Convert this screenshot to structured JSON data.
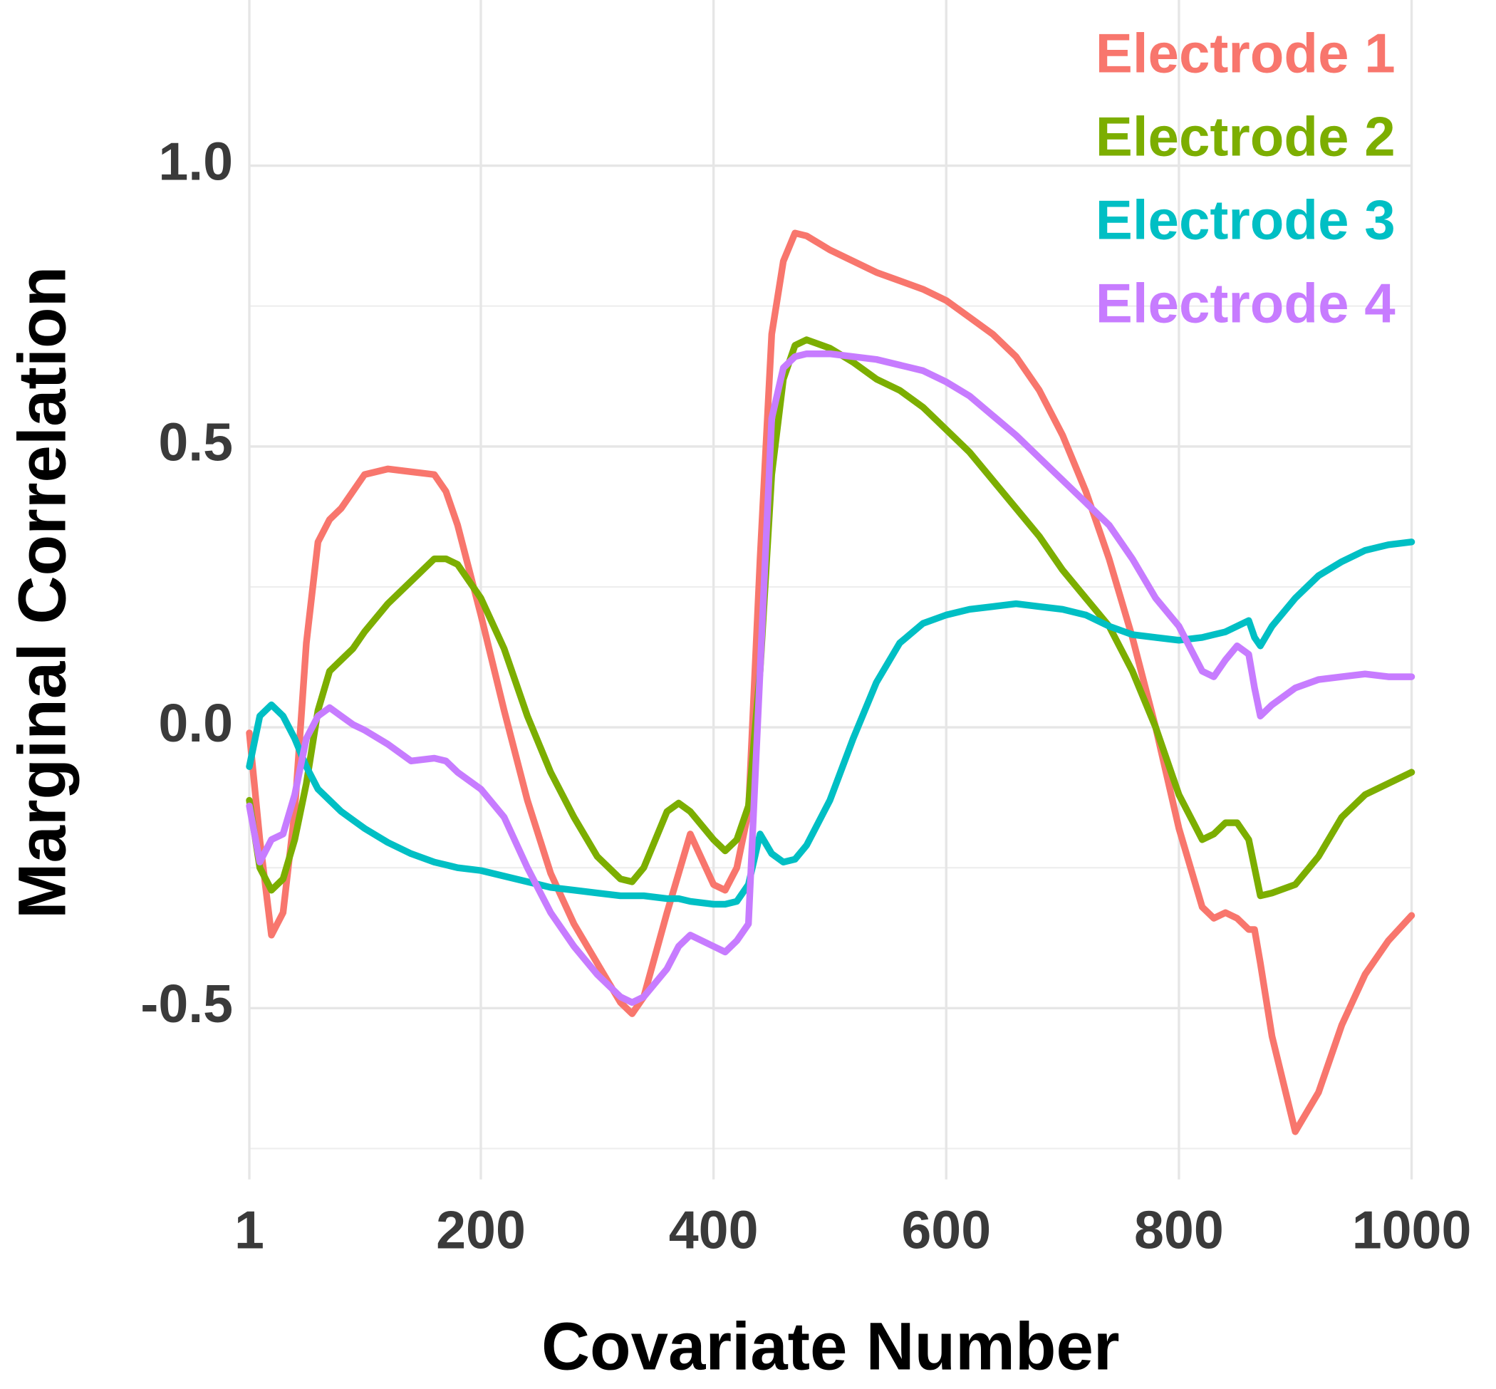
{
  "chart_data": {
    "type": "line",
    "x_label": "Covariate Number",
    "y_label": "Marginal Correlation",
    "x": [
      1,
      10,
      20,
      30,
      40,
      50,
      60,
      70,
      80,
      90,
      100,
      120,
      140,
      160,
      170,
      180,
      200,
      220,
      240,
      260,
      280,
      300,
      320,
      330,
      340,
      360,
      370,
      380,
      400,
      410,
      420,
      430,
      440,
      450,
      460,
      470,
      480,
      500,
      520,
      540,
      560,
      580,
      600,
      620,
      640,
      660,
      680,
      700,
      720,
      740,
      760,
      780,
      800,
      820,
      830,
      840,
      850,
      860,
      865,
      870,
      880,
      900,
      920,
      940,
      960,
      980,
      1000
    ],
    "series": [
      {
        "name": "Electrode 1",
        "color": "#F8766D",
        "values": [
          -0.01,
          -0.2,
          -0.37,
          -0.33,
          -0.15,
          0.15,
          0.33,
          0.37,
          0.39,
          0.42,
          0.45,
          0.46,
          0.455,
          0.45,
          0.42,
          0.36,
          0.2,
          0.03,
          -0.13,
          -0.26,
          -0.35,
          -0.42,
          -0.49,
          -0.51,
          -0.48,
          -0.33,
          -0.26,
          -0.19,
          -0.28,
          -0.29,
          -0.25,
          -0.15,
          0.3,
          0.7,
          0.83,
          0.88,
          0.875,
          0.85,
          0.83,
          0.81,
          0.795,
          0.78,
          0.76,
          0.73,
          0.7,
          0.66,
          0.6,
          0.52,
          0.42,
          0.3,
          0.16,
          0.0,
          -0.18,
          -0.32,
          -0.34,
          -0.33,
          -0.34,
          -0.36,
          -0.36,
          -0.42,
          -0.55,
          -0.72,
          -0.65,
          -0.53,
          -0.44,
          -0.38,
          -0.335
        ]
      },
      {
        "name": "Electrode 2",
        "color": "#7CAE00",
        "values": [
          -0.13,
          -0.25,
          -0.29,
          -0.27,
          -0.2,
          -0.1,
          0.03,
          0.1,
          0.12,
          0.14,
          0.17,
          0.22,
          0.26,
          0.3,
          0.3,
          0.29,
          0.23,
          0.14,
          0.02,
          -0.08,
          -0.16,
          -0.23,
          -0.27,
          -0.275,
          -0.25,
          -0.15,
          -0.135,
          -0.15,
          -0.2,
          -0.22,
          -0.2,
          -0.14,
          0.1,
          0.45,
          0.62,
          0.68,
          0.69,
          0.675,
          0.65,
          0.62,
          0.6,
          0.57,
          0.53,
          0.49,
          0.44,
          0.39,
          0.34,
          0.28,
          0.23,
          0.18,
          0.1,
          0.0,
          -0.12,
          -0.2,
          -0.19,
          -0.17,
          -0.17,
          -0.2,
          -0.25,
          -0.3,
          -0.295,
          -0.28,
          -0.23,
          -0.16,
          -0.12,
          -0.1,
          -0.08
        ]
      },
      {
        "name": "Electrode 3",
        "color": "#00BFC4",
        "values": [
          -0.07,
          0.02,
          0.04,
          0.02,
          -0.02,
          -0.07,
          -0.11,
          -0.13,
          -0.15,
          -0.165,
          -0.18,
          -0.205,
          -0.225,
          -0.24,
          -0.245,
          -0.25,
          -0.255,
          -0.265,
          -0.275,
          -0.285,
          -0.29,
          -0.295,
          -0.3,
          -0.3,
          -0.3,
          -0.305,
          -0.305,
          -0.31,
          -0.315,
          -0.315,
          -0.31,
          -0.28,
          -0.19,
          -0.225,
          -0.24,
          -0.235,
          -0.21,
          -0.13,
          -0.02,
          0.08,
          0.15,
          0.185,
          0.2,
          0.21,
          0.215,
          0.22,
          0.215,
          0.21,
          0.2,
          0.18,
          0.165,
          0.16,
          0.155,
          0.16,
          0.165,
          0.17,
          0.18,
          0.19,
          0.16,
          0.145,
          0.18,
          0.23,
          0.27,
          0.295,
          0.315,
          0.325,
          0.33
        ]
      },
      {
        "name": "Electrode 4",
        "color": "#C77CFF",
        "values": [
          -0.14,
          -0.24,
          -0.2,
          -0.19,
          -0.12,
          -0.02,
          0.02,
          0.035,
          0.02,
          0.005,
          -0.005,
          -0.03,
          -0.06,
          -0.055,
          -0.06,
          -0.08,
          -0.11,
          -0.16,
          -0.25,
          -0.33,
          -0.39,
          -0.44,
          -0.48,
          -0.49,
          -0.48,
          -0.43,
          -0.39,
          -0.37,
          -0.39,
          -0.4,
          -0.38,
          -0.35,
          0.1,
          0.55,
          0.64,
          0.66,
          0.665,
          0.665,
          0.66,
          0.655,
          0.645,
          0.635,
          0.615,
          0.59,
          0.555,
          0.52,
          0.48,
          0.44,
          0.4,
          0.36,
          0.3,
          0.23,
          0.18,
          0.1,
          0.09,
          0.12,
          0.145,
          0.13,
          0.07,
          0.02,
          0.04,
          0.07,
          0.085,
          0.09,
          0.095,
          0.09,
          0.09
        ]
      }
    ],
    "xlim": [
      1,
      1000
    ],
    "xticks": [
      1,
      200,
      400,
      600,
      800,
      1000
    ],
    "ylim": [
      -0.805,
      1.295
    ],
    "yticks": [
      -0.5,
      {
        "value": 0,
        "label": "0.0"
      },
      0.5,
      {
        "value": 1,
        "label": "1.0"
      }
    ],
    "yminorticks": [
      -0.75,
      -0.25,
      0.25,
      0.75
    ],
    "grid": true,
    "legend_position": "top-right"
  }
}
